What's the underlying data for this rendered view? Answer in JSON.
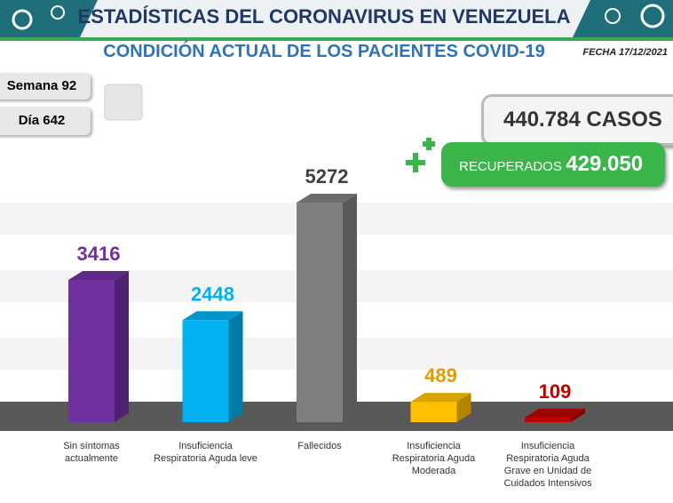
{
  "header": {
    "title": "ESTADÍSTICAS DEL CORONAVIRUS EN VENEZUELA",
    "subtitle": "CONDICIÓN ACTUAL DE LOS PACIENTES COVID-19",
    "date": "FECHA 17/12/2021"
  },
  "info": {
    "week": "Semana 92",
    "day": "Día 642",
    "cases": "440.784 CASOS",
    "recovered_label": "RECUPERADOS",
    "recovered_value": "429.050"
  },
  "chart_data": {
    "type": "bar",
    "categories": [
      "Sin síntomas actualmente",
      "Insuficiencia Respiratoria Aguda leve",
      "Fallecidos",
      "Insuficiencia Respiratoria Aguda Moderada",
      "Insuficiencia Respiratoria Aguda Grave en Unidad de Cuidados Intensivos"
    ],
    "values": [
      3416,
      2448,
      5272,
      489,
      109
    ],
    "colors": [
      "#7030a0",
      "#00b0f0",
      "#7f7f7f",
      "#ffc000",
      "#c00000"
    ],
    "label_colors": [
      "#7030a0",
      "#00b0f0",
      "#404040",
      "#e39c00",
      "#c00000"
    ]
  }
}
